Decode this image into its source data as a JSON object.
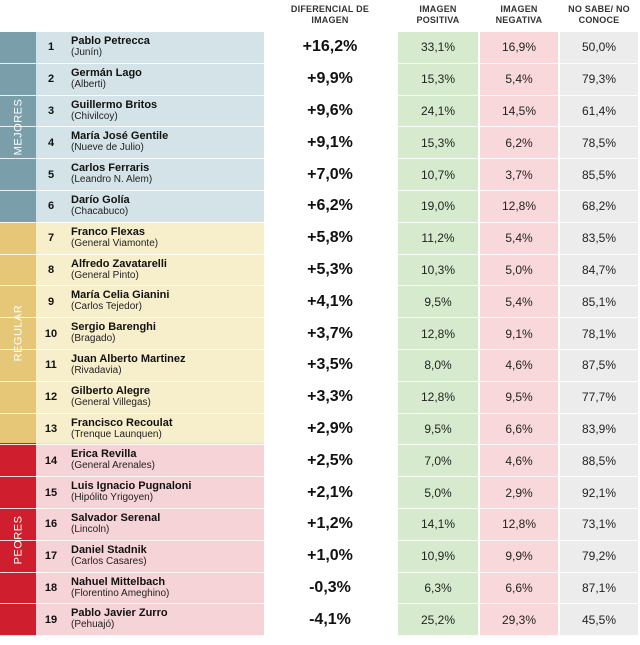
{
  "headers": {
    "diff": "DIFERENCIAL DE IMAGEN",
    "pos": "IMAGEN POSITIVA",
    "neg": "IMAGEN NEGATIVA",
    "ns": "NO SABE/ NO CONOCE"
  },
  "bands": {
    "mejores": "MEJORES",
    "regular": "REGULAR",
    "peores": "PEORES"
  },
  "colors": {
    "mejores": "#7b9eab",
    "regular": "#e5c777",
    "peores": "#cf1f2e",
    "positiva": "#d6ebce",
    "negativa": "#f8d8da",
    "nosabe": "#ececec"
  },
  "rows": [
    {
      "num": "1",
      "name": "Pablo Petrecca",
      "town": "(Junín)",
      "diff": "+16,2%",
      "pos": "33,1%",
      "neg": "16,9%",
      "ns": "50,0%"
    },
    {
      "num": "2",
      "name": "Germán Lago",
      "town": "(Alberti)",
      "diff": "+9,9%",
      "pos": "15,3%",
      "neg": "5,4%",
      "ns": "79,3%"
    },
    {
      "num": "3",
      "name": "Guillermo Britos",
      "town": "(Chivilcoy)",
      "diff": "+9,6%",
      "pos": "24,1%",
      "neg": "14,5%",
      "ns": "61,4%"
    },
    {
      "num": "4",
      "name": "María José Gentile",
      "town": "(Nueve de Julio)",
      "diff": "+9,1%",
      "pos": "15,3%",
      "neg": "6,2%",
      "ns": "78,5%"
    },
    {
      "num": "5",
      "name": "Carlos Ferraris",
      "town": "(Leandro N. Alem)",
      "diff": "+7,0%",
      "pos": "10,7%",
      "neg": "3,7%",
      "ns": "85,5%"
    },
    {
      "num": "6",
      "name": "Darío Golía",
      "town": "(Chacabuco)",
      "diff": "+6,2%",
      "pos": "19,0%",
      "neg": "12,8%",
      "ns": "68,2%"
    },
    {
      "num": "7",
      "name": "Franco Flexas",
      "town": "(General Viamonte)",
      "diff": "+5,8%",
      "pos": "11,2%",
      "neg": "5,4%",
      "ns": "83,5%"
    },
    {
      "num": "8",
      "name": "Alfredo Zavatarelli",
      "town": "(General Pinto)",
      "diff": "+5,3%",
      "pos": "10,3%",
      "neg": "5,0%",
      "ns": "84,7%"
    },
    {
      "num": "9",
      "name": "María Celia Gianini",
      "town": "(Carlos Tejedor)",
      "diff": "+4,1%",
      "pos": "9,5%",
      "neg": "5,4%",
      "ns": "85,1%"
    },
    {
      "num": "10",
      "name": "Sergio Barenghi",
      "town": "(Bragado)",
      "diff": "+3,7%",
      "pos": "12,8%",
      "neg": "9,1%",
      "ns": "78,1%"
    },
    {
      "num": "11",
      "name": "Juan Alberto Martinez",
      "town": "(Rivadavia)",
      "diff": "+3,5%",
      "pos": "8,0%",
      "neg": "4,6%",
      "ns": "87,5%"
    },
    {
      "num": "12",
      "name": "Gilberto Alegre",
      "town": "(General Villegas)",
      "diff": "+3,3%",
      "pos": "12,8%",
      "neg": "9,5%",
      "ns": "77,7%"
    },
    {
      "num": "13",
      "name": "Francisco Recoulat",
      "town": "(Trenque Launquen)",
      "diff": "+2,9%",
      "pos": "9,5%",
      "neg": "6,6%",
      "ns": "83,9%"
    },
    {
      "num": "14",
      "name": "Erica Revilla",
      "town": "(General Arenales)",
      "diff": "+2,5%",
      "pos": "7,0%",
      "neg": "4,6%",
      "ns": "88,5%"
    },
    {
      "num": "15",
      "name": "Luis Ignacio Pugnaloni",
      "town": "(Hipólito Yrigoyen)",
      "diff": "+2,1%",
      "pos": "5,0%",
      "neg": "2,9%",
      "ns": "92,1%"
    },
    {
      "num": "16",
      "name": "Salvador Serenal",
      "town": "(Lincoln)",
      "diff": "+1,2%",
      "pos": "14,1%",
      "neg": "12,8%",
      "ns": "73,1%"
    },
    {
      "num": "17",
      "name": "Daniel Stadnik",
      "town": "(Carlos Casares)",
      "diff": "+1,0%",
      "pos": "10,9%",
      "neg": "9,9%",
      "ns": "79,2%"
    },
    {
      "num": "18",
      "name": "Nahuel Mittelbach",
      "town": "(Florentino Ameghino)",
      "diff": "-0,3%",
      "pos": "6,3%",
      "neg": "6,6%",
      "ns": "87,1%"
    },
    {
      "num": "19",
      "name": "Pablo Javier Zurro",
      "town": "(Pehuajó)",
      "diff": "-4,1%",
      "pos": "25,2%",
      "neg": "29,3%",
      "ns": "45,5%"
    }
  ]
}
